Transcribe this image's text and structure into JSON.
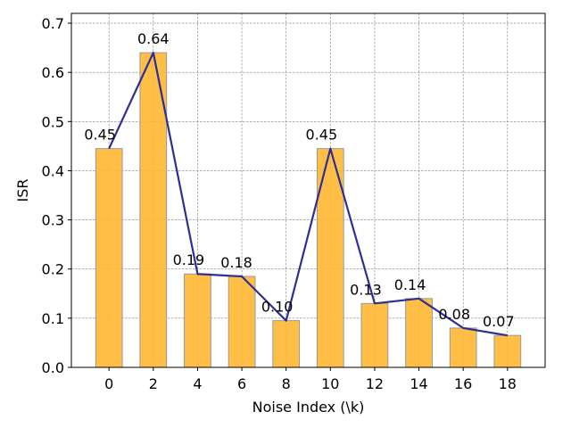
{
  "chart_data": {
    "type": "bar",
    "categories": [
      "0",
      "2",
      "4",
      "6",
      "8",
      "10",
      "12",
      "14",
      "16",
      "18"
    ],
    "x": [
      0,
      2,
      4,
      6,
      8,
      10,
      12,
      14,
      16,
      18
    ],
    "values": [
      0.445,
      0.64,
      0.19,
      0.185,
      0.095,
      0.445,
      0.13,
      0.14,
      0.08,
      0.065
    ],
    "data_labels": [
      "0.45",
      "0.64",
      "0.19",
      "0.18",
      "0.10",
      "0.45",
      "0.13",
      "0.14",
      "0.08",
      "0.07"
    ],
    "overlay": {
      "type": "line",
      "values": [
        0.445,
        0.64,
        0.19,
        0.185,
        0.095,
        0.445,
        0.13,
        0.14,
        0.08,
        0.065
      ]
    },
    "xlabel": "Noise Index (\\k)",
    "ylabel": "ISR",
    "ylim": [
      0,
      0.72
    ],
    "xlim": [
      -1.7,
      19.7
    ],
    "yticks": [
      0.0,
      0.1,
      0.2,
      0.3,
      0.4,
      0.5,
      0.6,
      0.7
    ],
    "ytick_labels": [
      "0.0",
      "0.1",
      "0.2",
      "0.3",
      "0.4",
      "0.5",
      "0.6",
      "0.7"
    ],
    "grid": true,
    "colors": {
      "bar": "#ffb833",
      "bar_edge": "#999999",
      "line": "#2e2e96",
      "grid": "#808080"
    }
  }
}
